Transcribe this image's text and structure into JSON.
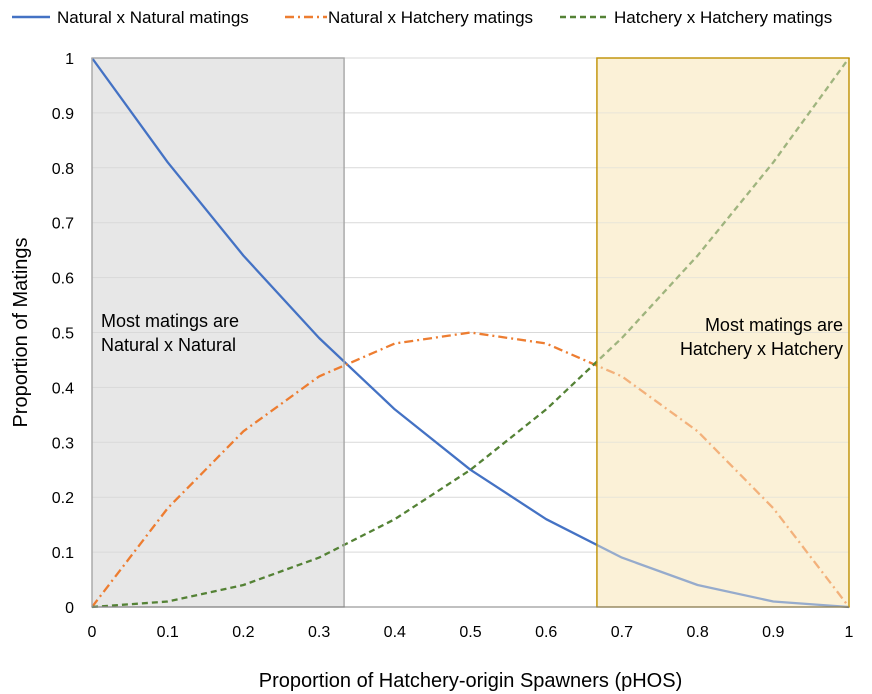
{
  "chart_data": {
    "type": "line",
    "xlabel": "Proportion of Hatchery-origin Spawners (pHOS)",
    "ylabel": "Proportion of Matings",
    "xlim": [
      0,
      1
    ],
    "ylim": [
      0,
      1
    ],
    "xticks": [
      "0",
      "0.1",
      "0.2",
      "0.3",
      "0.4",
      "0.5",
      "0.6",
      "0.7",
      "0.8",
      "0.9",
      "1"
    ],
    "yticks": [
      "0",
      "0.1",
      "0.2",
      "0.3",
      "0.4",
      "0.5",
      "0.6",
      "0.7",
      "0.8",
      "0.9",
      "1"
    ],
    "grid": "horizontal",
    "legend_position": "top",
    "x": [
      0,
      0.1,
      0.2,
      0.3,
      0.4,
      0.5,
      0.6,
      0.7,
      0.8,
      0.9,
      1
    ],
    "series": [
      {
        "name": "Natural x Natural matings",
        "style": "solid",
        "color": "#4472C4",
        "values": [
          1,
          0.81,
          0.64,
          0.49,
          0.36,
          0.25,
          0.16,
          0.09,
          0.04,
          0.01,
          0
        ]
      },
      {
        "name": "Natural x Hatchery matings",
        "style": "dash-dot",
        "color": "#ED7D31",
        "values": [
          0,
          0.18,
          0.32,
          0.42,
          0.48,
          0.5,
          0.48,
          0.42,
          0.32,
          0.18,
          0
        ]
      },
      {
        "name": "Hatchery x Hatchery matings",
        "style": "dashed",
        "color": "#548235",
        "values": [
          0,
          0.01,
          0.04,
          0.09,
          0.16,
          0.25,
          0.36,
          0.49,
          0.64,
          0.81,
          1
        ]
      }
    ],
    "shaded_regions": [
      {
        "x_range": [
          0,
          0.333
        ],
        "fill": "#E7E7E7",
        "stroke": "#A6A6A6"
      },
      {
        "x_range": [
          0.667,
          1
        ],
        "fill": "#FBF1D7",
        "stroke": "#BF9000"
      }
    ],
    "annotations": {
      "left": [
        "Most matings are",
        "Natural x Natural"
      ],
      "right": [
        "Most matings are",
        "Hatchery x Hatchery"
      ]
    }
  }
}
